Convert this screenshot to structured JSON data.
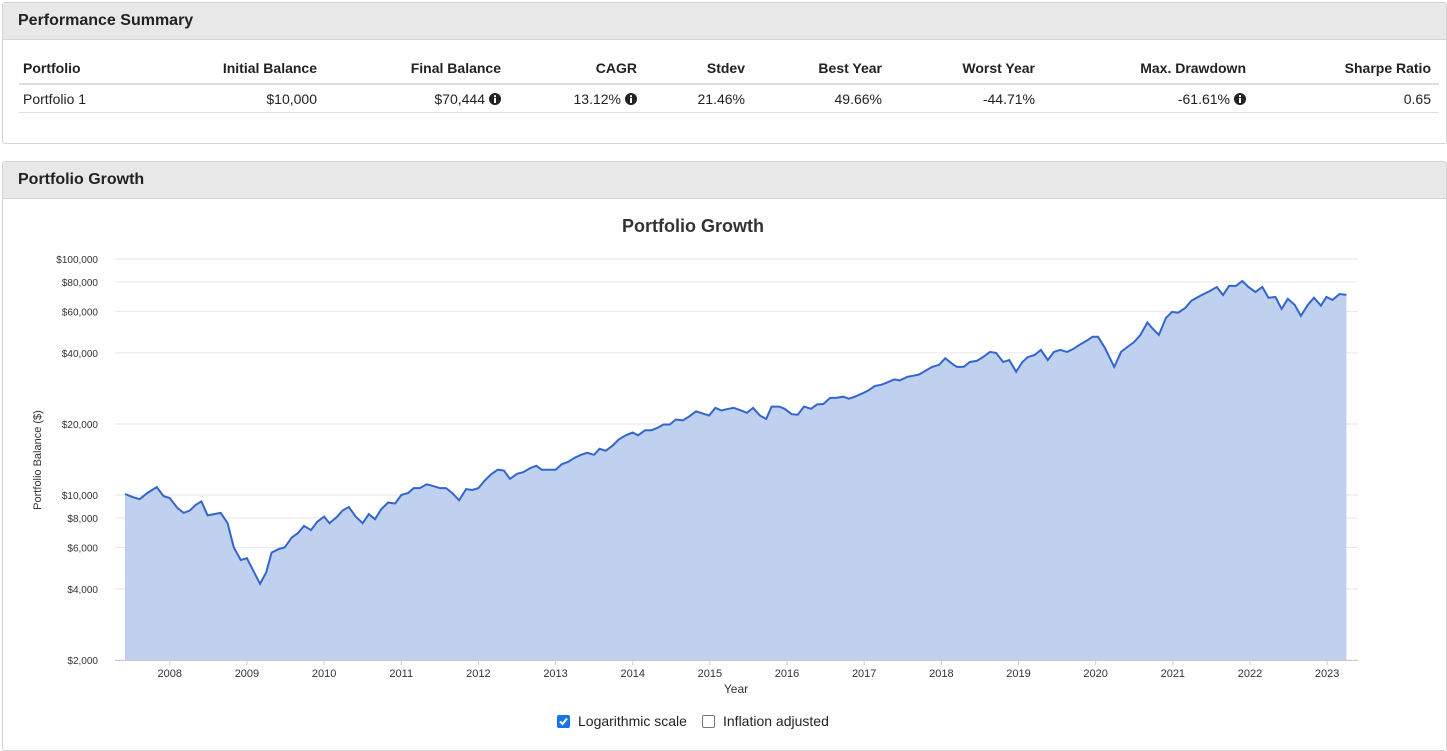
{
  "performance_summary": {
    "title": "Performance Summary",
    "columns": [
      "Portfolio",
      "Initial Balance",
      "Final Balance",
      "CAGR",
      "Stdev",
      "Best Year",
      "Worst Year",
      "Max. Drawdown",
      "Sharpe Ratio"
    ],
    "rows": [
      [
        "Portfolio 1",
        "$10,000",
        "$70,444",
        "13.12%",
        "21.46%",
        "49.66%",
        "-44.71%",
        "-61.61%",
        "0.65"
      ]
    ]
  },
  "growth_panel": {
    "title": "Portfolio Growth"
  },
  "chart_data": {
    "type": "area",
    "title": "Portfolio Growth",
    "x_label": "Year",
    "y_label": "Portfolio Balance ($)",
    "log_scale": true,
    "grid": true,
    "line_color": "#3366cc",
    "fill_color": "#c0d1f0",
    "xlim": [
      2007.29,
      2023.4
    ],
    "xticks": [
      2008,
      2009,
      2010,
      2011,
      2012,
      2013,
      2014,
      2015,
      2016,
      2017,
      2018,
      2019,
      2020,
      2021,
      2022,
      2023
    ],
    "ylim": [
      2000,
      100000
    ],
    "yticks": [
      {
        "value": 2000,
        "label": "$2,000"
      },
      {
        "value": 4000,
        "label": "$4,000"
      },
      {
        "value": 6000,
        "label": "$6,000"
      },
      {
        "value": 8000,
        "label": "$8,000"
      },
      {
        "value": 10000,
        "label": "$10,000"
      },
      {
        "value": 20000,
        "label": "$20,000"
      },
      {
        "value": 40000,
        "label": "$40,000"
      },
      {
        "value": 60000,
        "label": "$60,000"
      },
      {
        "value": 80000,
        "label": "$80,000"
      },
      {
        "value": 100000,
        "label": "$100,000"
      }
    ],
    "x": [
      2007.42,
      2007.52,
      2007.61,
      2007.71,
      2007.83,
      2007.92,
      2008.0,
      2008.1,
      2008.18,
      2008.26,
      2008.34,
      2008.41,
      2008.49,
      2008.66,
      2008.75,
      2008.83,
      2008.92,
      2009.0,
      2009.08,
      2009.17,
      2009.25,
      2009.32,
      2009.41,
      2009.49,
      2009.58,
      2009.66,
      2009.74,
      2009.83,
      2009.91,
      2010.0,
      2010.07,
      2010.17,
      2010.24,
      2010.32,
      2010.41,
      2010.5,
      2010.58,
      2010.66,
      2010.74,
      2010.83,
      2010.92,
      2011.0,
      2011.09,
      2011.16,
      2011.24,
      2011.33,
      2011.42,
      2011.5,
      2011.58,
      2011.66,
      2011.75,
      2011.84,
      2011.92,
      2012.0,
      2012.08,
      2012.16,
      2012.25,
      2012.33,
      2012.41,
      2012.5,
      2012.58,
      2012.67,
      2012.75,
      2012.82,
      2013.0,
      2013.08,
      2013.16,
      2013.25,
      2013.33,
      2013.41,
      2013.5,
      2013.57,
      2013.65,
      2013.74,
      2013.82,
      2013.91,
      2014.0,
      2014.07,
      2014.16,
      2014.24,
      2014.31,
      2014.4,
      2014.48,
      2014.56,
      2014.65,
      2014.73,
      2014.82,
      2014.9,
      2014.99,
      2015.07,
      2015.15,
      2015.24,
      2015.31,
      2015.39,
      2015.48,
      2015.56,
      2015.65,
      2015.73,
      2015.8,
      2015.9,
      2015.97,
      2016.06,
      2016.14,
      2016.22,
      2016.31,
      2016.39,
      2016.47,
      2016.56,
      2016.63,
      2016.73,
      2016.8,
      2016.88,
      2016.97,
      2017.05,
      2017.14,
      2017.22,
      2017.3,
      2017.39,
      2017.46,
      2017.56,
      2017.63,
      2017.71,
      2017.8,
      2017.88,
      2017.97,
      2018.05,
      2018.13,
      2018.2,
      2018.29,
      2018.37,
      2018.46,
      2018.54,
      2018.63,
      2018.71,
      2018.8,
      2018.88,
      2018.97,
      2019.05,
      2019.12,
      2019.21,
      2019.29,
      2019.38,
      2019.46,
      2019.54,
      2019.63,
      2019.71,
      2019.79,
      2019.88,
      2019.96,
      2020.03,
      2020.12,
      2020.24,
      2020.33,
      2020.41,
      2020.5,
      2020.58,
      2020.67,
      2020.75,
      2020.82,
      2020.91,
      2020.99,
      2021.07,
      2021.16,
      2021.24,
      2021.31,
      2021.4,
      2021.48,
      2021.57,
      2021.65,
      2021.73,
      2021.82,
      2021.9,
      2021.98,
      2022.07,
      2022.16,
      2022.24,
      2022.33,
      2022.41,
      2022.49,
      2022.58,
      2022.66,
      2022.75,
      2022.83,
      2022.92,
      2022.99,
      2023.07,
      2023.16,
      2023.25
    ],
    "values": [
      10100,
      9800,
      9600,
      10200,
      10800,
      9900,
      9700,
      8800,
      8400,
      8600,
      9100,
      9400,
      8200,
      8400,
      7600,
      6000,
      5300,
      5400,
      4800,
      4200,
      4700,
      5700,
      5900,
      6000,
      6600,
      6900,
      7400,
      7100,
      7700,
      8100,
      7600,
      8100,
      8600,
      8900,
      8100,
      7600,
      8300,
      7900,
      8700,
      9300,
      9200,
      10000,
      10200,
      10700,
      10700,
      11100,
      10900,
      10700,
      10700,
      10200,
      9500,
      10600,
      10500,
      10700,
      11500,
      12200,
      12800,
      12700,
      11700,
      12300,
      12500,
      13000,
      13300,
      12800,
      12800,
      13500,
      13800,
      14400,
      14800,
      15100,
      14800,
      15700,
      15400,
      16200,
      17200,
      17900,
      18400,
      17900,
      18800,
      18800,
      19200,
      19900,
      19900,
      20900,
      20700,
      21500,
      22600,
      22200,
      21700,
      23400,
      22800,
      23200,
      23400,
      22900,
      22300,
      23400,
      21700,
      21000,
      23700,
      23700,
      23200,
      22000,
      21900,
      23700,
      23200,
      24200,
      24300,
      25800,
      25800,
      26100,
      25600,
      26100,
      26900,
      27700,
      29000,
      29300,
      30000,
      30900,
      30600,
      31700,
      32000,
      32400,
      33700,
      34900,
      35600,
      38000,
      36200,
      34900,
      34900,
      36600,
      37000,
      38400,
      40400,
      40000,
      36600,
      37300,
      33300,
      36600,
      38400,
      39200,
      41200,
      37300,
      40400,
      41200,
      40400,
      41600,
      43300,
      45000,
      46800,
      46800,
      42000,
      34900,
      40400,
      42400,
      44500,
      47700,
      53800,
      50200,
      47700,
      56300,
      59700,
      59200,
      62000,
      66500,
      68500,
      71100,
      73200,
      76100,
      70400,
      76900,
      76900,
      80700,
      76100,
      72500,
      76100,
      68500,
      69100,
      61400,
      67800,
      63900,
      57400,
      63900,
      68500,
      63400,
      69100,
      67100,
      71100,
      70444
    ]
  },
  "controls": [
    {
      "label": "Logarithmic scale",
      "checked": true
    },
    {
      "label": "Inflation adjusted",
      "checked": false
    }
  ]
}
